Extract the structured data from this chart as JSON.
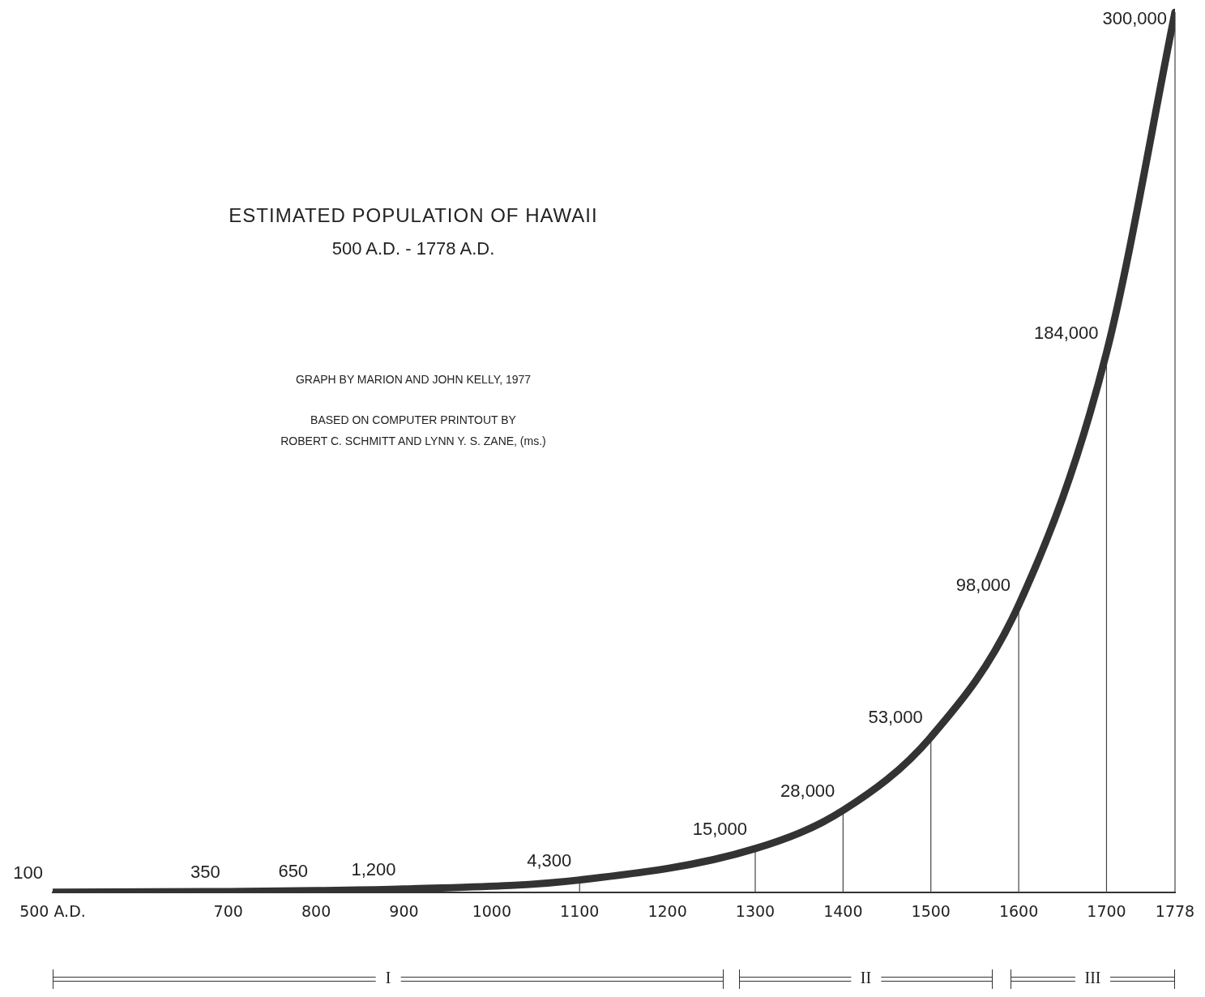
{
  "chart_data": {
    "type": "line",
    "title": "ESTIMATED POPULATION OF HAWAII",
    "subtitle": "500 A.D. - 1778 A.D.",
    "annotations": [
      "GRAPH BY MARION AND JOHN KELLY, 1977",
      "BASED ON COMPUTER PRINTOUT BY\nROBERT C. SCHMITT AND LYNN Y. S. ZANE, (ms.)",
      "I",
      "II",
      "III"
    ],
    "x": [
      500,
      700,
      800,
      900,
      1100,
      1300,
      1400,
      1500,
      1600,
      1700,
      1778
    ],
    "values": [
      100,
      350,
      650,
      1200,
      4300,
      15000,
      28000,
      53000,
      98000,
      184000,
      300000
    ],
    "value_labels": [
      "100",
      "350",
      "650",
      "1,200",
      "4,300",
      "15,000",
      "28,000",
      "53,000",
      "98,000",
      "184,000",
      "300,000"
    ],
    "color": "#333333",
    "marker": "none",
    "tick_labels": "x",
    "xlim": [
      500,
      1778
    ],
    "xticks": [
      {
        "value": 500,
        "label": "500 A.D."
      },
      700,
      800,
      900,
      1000,
      1100,
      1200,
      1300,
      1400,
      1500,
      1600,
      1700,
      1778
    ]
  }
}
